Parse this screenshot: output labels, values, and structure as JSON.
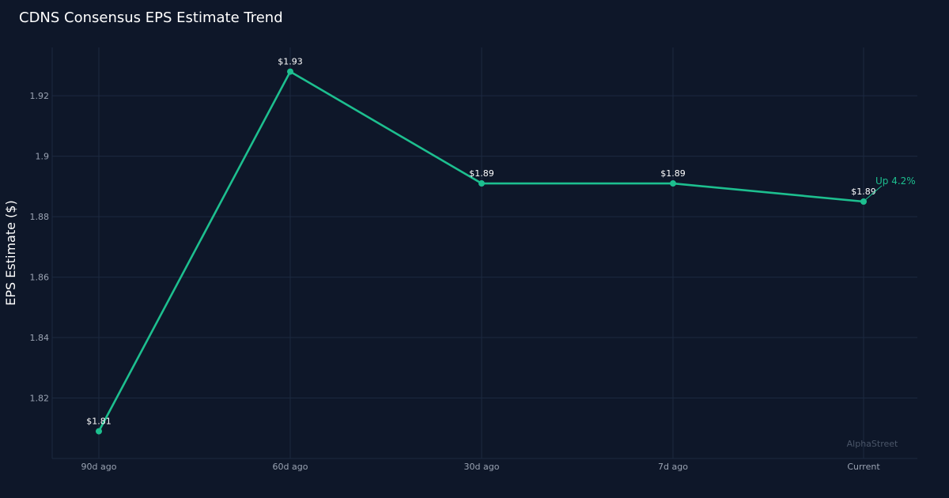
{
  "chart_data": {
    "type": "line",
    "title": "CDNS Consensus EPS Estimate Trend",
    "xlabel": "",
    "ylabel": "EPS Estimate ($)",
    "categories": [
      "90d ago",
      "60d ago",
      "30d ago",
      "7d ago",
      "Current"
    ],
    "series": [
      {
        "values": [
          1.809,
          1.928,
          1.891,
          1.891,
          1.885
        ],
        "labels": [
          "$1.81",
          "$1.93",
          "$1.89",
          "$1.89",
          "$1.89"
        ],
        "color": "#1dbf8f"
      }
    ],
    "ylim": [
      1.8,
      1.936
    ],
    "yticks": [
      1.82,
      1.84,
      1.86,
      1.88,
      1.9,
      1.92
    ],
    "ytick_labels": [
      "1.82",
      "1.84",
      "1.86",
      "1.88",
      "1.9",
      "1.92"
    ],
    "grid": true,
    "annotations": [
      {
        "text": "Up 4.2%",
        "point_index": 4,
        "color": "#1dbf8f"
      }
    ],
    "watermark": "AlphaStreet"
  },
  "colors": {
    "background": "#0e1729",
    "grid": "#1c2940",
    "line": "#1dbf8f",
    "tick_text": "#9aa3b2"
  }
}
